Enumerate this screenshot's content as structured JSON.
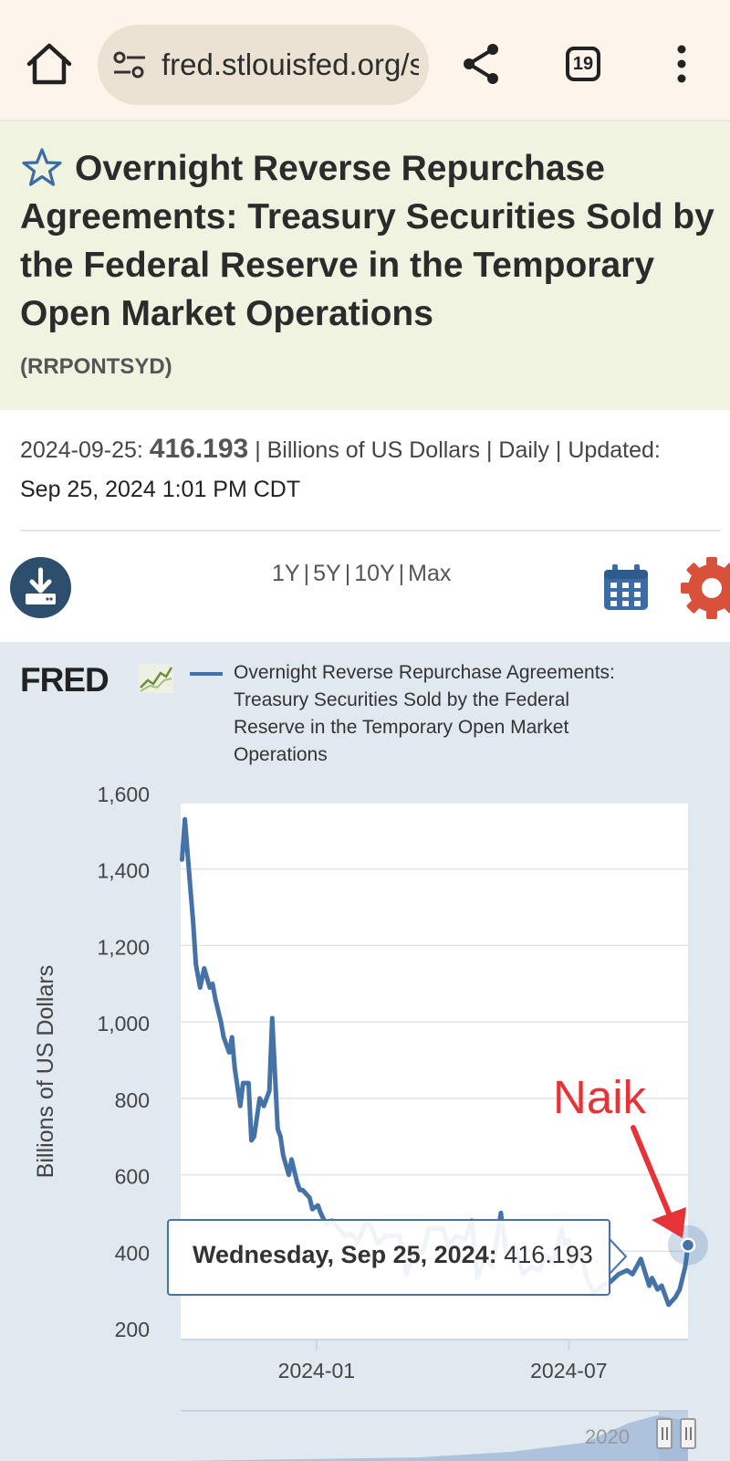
{
  "browser": {
    "url": "fred.stlouisfed.org/series/RRPONTSYD",
    "tab_count": "19"
  },
  "series": {
    "title": "Overnight Reverse Repurchase Agreements: Treasury Securities Sold by the Federal Reserve in the Temporary Open Market Operations",
    "id": "(RRPONTSYD)",
    "date_prefix": "2024-09-25:",
    "value": "416.193",
    "units_line": "| Billions of US Dollars | Daily | Updated:",
    "updated": "Sep 25, 2024 1:01 PM CDT"
  },
  "toolbar": {
    "ranges": [
      "1Y",
      "5Y",
      "10Y",
      "Max"
    ]
  },
  "chart": {
    "logo": "FRED",
    "legend": "Overnight Reverse Repurchase Agreements: Treasury Securities Sold by the Federal Reserve in the Temporary Open Market Operations",
    "annotation": "Naik",
    "tooltip_date": "Wednesday, Sep 25, 2024:",
    "tooltip_value": "416.193",
    "navigator_label": "2020"
  },
  "colors": {
    "series_line": "#4572a7",
    "annotation": "#e53338",
    "title_bg": "#f1f3e1",
    "chart_bg": "#e1e9f0"
  },
  "chart_data": {
    "type": "line",
    "ylabel": "Billions of US Dollars",
    "xlabel": "",
    "ylim": [
      200,
      1600
    ],
    "xlim": [
      "2023-09-25",
      "2024-09-25"
    ],
    "ytick_labels": [
      "1,600",
      "1,400",
      "1,200",
      "1,000",
      "800",
      "600",
      "400",
      "200"
    ],
    "yticks": [
      1600,
      1400,
      1200,
      1000,
      800,
      600,
      400,
      200
    ],
    "xtick_labels": [
      "2024-01",
      "2024-07"
    ],
    "xticks": [
      "2024-01-01",
      "2024-07-01"
    ],
    "series": [
      {
        "x": [
          "2023-09-26",
          "2023-09-28",
          "2023-10-02",
          "2023-10-04",
          "2023-10-06",
          "2023-10-09",
          "2023-10-12",
          "2023-10-16",
          "2023-10-18",
          "2023-10-20",
          "2023-10-24",
          "2023-10-26",
          "2023-10-30",
          "2023-11-01",
          "2023-11-03",
          "2023-11-07",
          "2023-11-09",
          "2023-11-13",
          "2023-11-15",
          "2023-11-17",
          "2023-11-21",
          "2023-11-24",
          "2023-11-28",
          "2023-11-30",
          "2023-12-04",
          "2023-12-06",
          "2023-12-08",
          "2023-12-12",
          "2023-12-14",
          "2023-12-18",
          "2023-12-20",
          "2023-12-22",
          "2023-12-27",
          "2023-12-29",
          "2024-01-02",
          "2024-01-04",
          "2024-01-08",
          "2024-01-12",
          "2024-01-17",
          "2024-01-22",
          "2024-01-26",
          "2024-01-31",
          "2024-02-05",
          "2024-02-09",
          "2024-02-14",
          "2024-02-20",
          "2024-02-26",
          "2024-03-01",
          "2024-03-06",
          "2024-03-12",
          "2024-03-18",
          "2024-03-22",
          "2024-03-28",
          "2024-04-01",
          "2024-04-05",
          "2024-04-11",
          "2024-04-17",
          "2024-04-22",
          "2024-04-26",
          "2024-05-01",
          "2024-05-07",
          "2024-05-13",
          "2024-05-17",
          "2024-05-23",
          "2024-05-29",
          "2024-06-04",
          "2024-06-10",
          "2024-06-14",
          "2024-06-20",
          "2024-06-26",
          "2024-06-28",
          "2024-07-01",
          "2024-07-03",
          "2024-07-09",
          "2024-07-15",
          "2024-07-19",
          "2024-07-25",
          "2024-07-31",
          "2024-08-06",
          "2024-08-12",
          "2024-08-16",
          "2024-08-22",
          "2024-08-28",
          "2024-08-30",
          "2024-09-03",
          "2024-09-06",
          "2024-09-11",
          "2024-09-16",
          "2024-09-19",
          "2024-09-23",
          "2024-09-25"
        ],
        "values": [
          1425,
          1530,
          1350,
          1260,
          1150,
          1090,
          1140,
          1090,
          1100,
          1060,
          1000,
          960,
          920,
          960,
          880,
          780,
          840,
          840,
          690,
          700,
          800,
          780,
          820,
          1010,
          720,
          700,
          650,
          600,
          640,
          580,
          560,
          560,
          540,
          510,
          520,
          500,
          470,
          480,
          460,
          440,
          445,
          425,
          470,
          470,
          420,
          440,
          440,
          440,
          340,
          400,
          400,
          460,
          460,
          460,
          415,
          440,
          430,
          480,
          330,
          380,
          360,
          500,
          390,
          410,
          340,
          360,
          350,
          390,
          370,
          460,
          420,
          430,
          360,
          400,
          320,
          290,
          310,
          320,
          340,
          350,
          340,
          380,
          310,
          330,
          300,
          310,
          260,
          280,
          300,
          360,
          416
        ]
      }
    ]
  }
}
